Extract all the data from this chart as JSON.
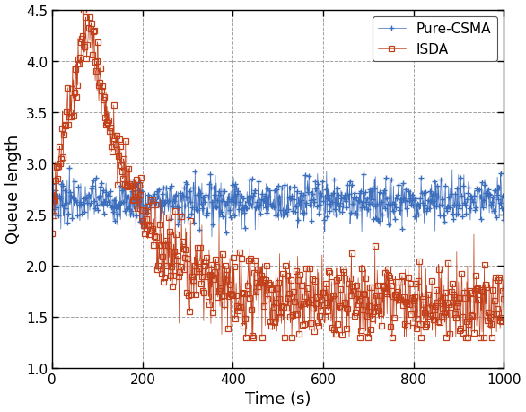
{
  "title": "",
  "xlabel": "Time (s)",
  "ylabel": "Queue length",
  "xlim": [
    0,
    1000
  ],
  "ylim": [
    1,
    4.5
  ],
  "yticks": [
    1,
    1.5,
    2,
    2.5,
    3,
    3.5,
    4,
    4.5
  ],
  "xticks": [
    0,
    200,
    400,
    600,
    800,
    1000
  ],
  "blue_color": "#3C6EBE",
  "orange_color": "#C2401A",
  "legend_labels": [
    "Pure-CSMA",
    "ISDA"
  ],
  "n_points": 1000,
  "seed": 7
}
